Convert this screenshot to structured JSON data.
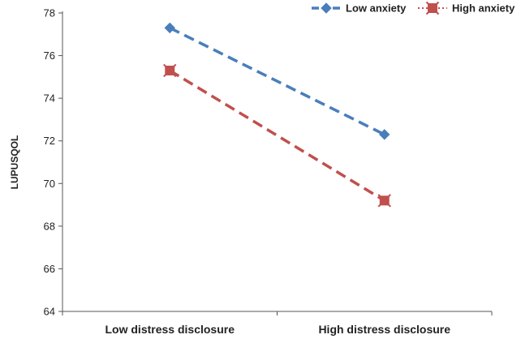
{
  "chart_data": {
    "type": "line",
    "categories": [
      "Low distress disclosure",
      "High distress disclosure"
    ],
    "ylabel": "LUPUSQOL",
    "xlabel": "",
    "ylim": [
      64,
      78
    ],
    "yticks": [
      "64",
      "66",
      "68",
      "70",
      "72",
      "74",
      "76",
      "78"
    ],
    "legend_position": "top-right",
    "grid": false,
    "series": [
      {
        "name": "Low anxiety",
        "values": [
          77.3,
          72.3
        ],
        "color": "#4a7ebb",
        "marker": "diamond",
        "line_style": "dashed"
      },
      {
        "name": "High anxiety",
        "values": [
          75.3,
          69.2
        ],
        "color": "#c0504d",
        "marker": "square-star",
        "line_style": "dashed"
      }
    ]
  }
}
